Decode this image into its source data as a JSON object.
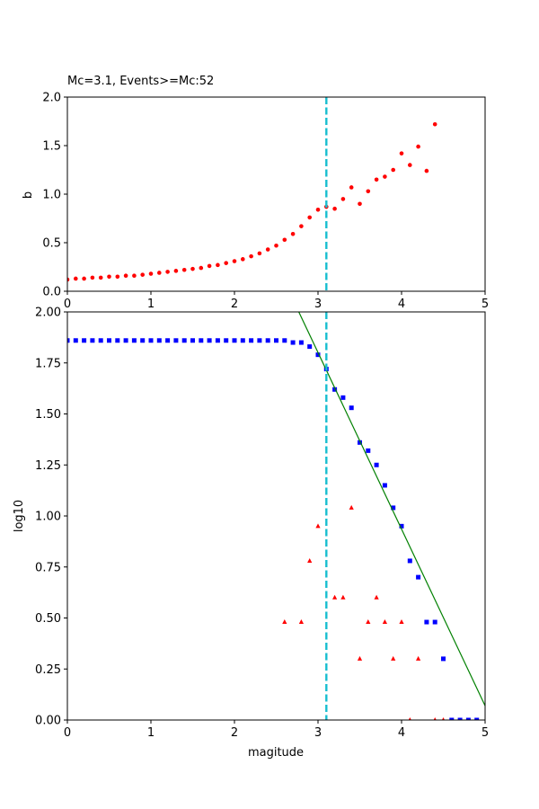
{
  "chart_data": [
    {
      "type": "scatter",
      "title": "Mc=3.1, Events>=Mc:52",
      "xlabel": "",
      "ylabel": "b",
      "xlim": [
        0,
        5
      ],
      "ylim": [
        0,
        2
      ],
      "xticks": [
        "0",
        "1",
        "2",
        "3",
        "4",
        "5"
      ],
      "yticks": [
        "0.0",
        "0.5",
        "1.0",
        "1.5",
        "2.0"
      ],
      "mc_line": 3.1,
      "colors": {
        "points": "#ff0000",
        "mc_line": "#17becf"
      },
      "series": [
        {
          "x": [
            0.0,
            0.1,
            0.2,
            0.3,
            0.4,
            0.5,
            0.6,
            0.7,
            0.8,
            0.9,
            1.0,
            1.1,
            1.2,
            1.3,
            1.4,
            1.5,
            1.6,
            1.7,
            1.8,
            1.9,
            2.0,
            2.1,
            2.2,
            2.3,
            2.4,
            2.5,
            2.6,
            2.7,
            2.8,
            2.9,
            3.0,
            3.1,
            3.2,
            3.3,
            3.4,
            3.5,
            3.6,
            3.7,
            3.8,
            3.9,
            4.0,
            4.1,
            4.2,
            4.3,
            4.4
          ],
          "y": [
            0.12,
            0.13,
            0.13,
            0.14,
            0.14,
            0.15,
            0.15,
            0.16,
            0.16,
            0.17,
            0.18,
            0.19,
            0.2,
            0.21,
            0.22,
            0.23,
            0.24,
            0.26,
            0.27,
            0.29,
            0.31,
            0.33,
            0.36,
            0.39,
            0.43,
            0.47,
            0.53,
            0.59,
            0.67,
            0.76,
            0.84,
            0.87,
            0.85,
            0.95,
            1.07,
            0.9,
            1.03,
            1.15,
            1.18,
            1.25,
            1.42,
            1.3,
            1.49,
            1.24,
            1.72
          ]
        }
      ]
    },
    {
      "type": "scatter",
      "title": "",
      "xlabel": "magitude",
      "ylabel": "log10",
      "xlim": [
        0,
        5
      ],
      "ylim": [
        0,
        2
      ],
      "xticks": [
        "0",
        "1",
        "2",
        "3",
        "4",
        "5"
      ],
      "yticks": [
        "0.00",
        "0.25",
        "0.50",
        "0.75",
        "1.00",
        "1.25",
        "1.50",
        "1.75",
        "2.00"
      ],
      "mc_line": 3.1,
      "colors": {
        "cumulative": "#0000ff",
        "noncumulative": "#ff0000",
        "fit": "#008000",
        "mc_line": "#17becf"
      },
      "series": [
        {
          "marker": "square",
          "x": [
            0.0,
            0.1,
            0.2,
            0.3,
            0.4,
            0.5,
            0.6,
            0.7,
            0.8,
            0.9,
            1.0,
            1.1,
            1.2,
            1.3,
            1.4,
            1.5,
            1.6,
            1.7,
            1.8,
            1.9,
            2.0,
            2.1,
            2.2,
            2.3,
            2.4,
            2.5,
            2.6,
            2.7,
            2.8,
            2.9,
            3.0,
            3.1,
            3.2,
            3.3,
            3.4,
            3.5,
            3.6,
            3.7,
            3.8,
            3.9,
            4.0,
            4.1,
            4.2,
            4.3,
            4.4,
            4.5,
            4.6,
            4.7,
            4.8,
            4.9
          ],
          "y": [
            1.86,
            1.86,
            1.86,
            1.86,
            1.86,
            1.86,
            1.86,
            1.86,
            1.86,
            1.86,
            1.86,
            1.86,
            1.86,
            1.86,
            1.86,
            1.86,
            1.86,
            1.86,
            1.86,
            1.86,
            1.86,
            1.86,
            1.86,
            1.86,
            1.86,
            1.86,
            1.86,
            1.85,
            1.85,
            1.83,
            1.79,
            1.72,
            1.62,
            1.58,
            1.53,
            1.36,
            1.32,
            1.25,
            1.15,
            1.04,
            0.95,
            0.78,
            0.7,
            0.48,
            0.48,
            0.3,
            0.0,
            0.0,
            0.0,
            0.0
          ]
        },
        {
          "marker": "triangle",
          "x": [
            2.6,
            2.8,
            2.9,
            3.0,
            3.2,
            3.3,
            3.4,
            3.5,
            3.6,
            3.7,
            3.8,
            3.9,
            4.0,
            4.1,
            4.2,
            4.4,
            4.5
          ],
          "y": [
            0.48,
            0.48,
            0.78,
            0.95,
            0.6,
            0.6,
            1.04,
            0.3,
            0.48,
            0.6,
            0.48,
            0.3,
            0.48,
            0.0,
            0.3,
            0.0,
            0.0
          ]
        },
        {
          "marker": "line",
          "x": [
            2.77,
            5.0
          ],
          "y": [
            2.0,
            0.07
          ]
        }
      ]
    }
  ]
}
